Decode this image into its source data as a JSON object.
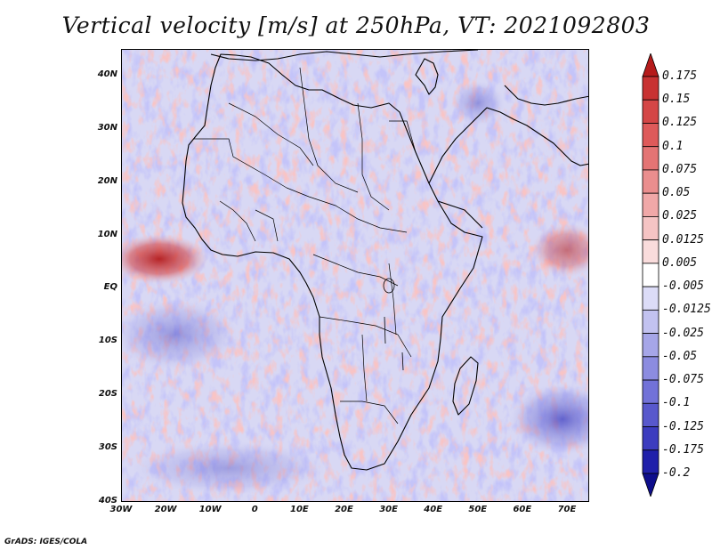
{
  "title": "Vertical velocity [m/s] at 250hPa, VT: 2021092803",
  "footer": "GrADS: IGES/COLA",
  "map": {
    "lon_range": [
      -30,
      75
    ],
    "lat_range": [
      -40,
      45
    ],
    "y_ticks": [
      {
        "label": "40N",
        "lat": 40
      },
      {
        "label": "30N",
        "lat": 30
      },
      {
        "label": "20N",
        "lat": 20
      },
      {
        "label": "10N",
        "lat": 10
      },
      {
        "label": "EQ",
        "lat": 0
      },
      {
        "label": "10S",
        "lat": -10
      },
      {
        "label": "20S",
        "lat": -20
      },
      {
        "label": "30S",
        "lat": -30
      },
      {
        "label": "40S",
        "lat": -40
      }
    ],
    "x_ticks": [
      {
        "label": "30W",
        "lon": -30
      },
      {
        "label": "20W",
        "lon": -20
      },
      {
        "label": "10W",
        "lon": -10
      },
      {
        "label": "0",
        "lon": 0
      },
      {
        "label": "10E",
        "lon": 10
      },
      {
        "label": "20E",
        "lon": 20
      },
      {
        "label": "30E",
        "lon": 30
      },
      {
        "label": "40E",
        "lon": 40
      },
      {
        "label": "50E",
        "lon": 50
      },
      {
        "label": "60E",
        "lon": 60
      },
      {
        "label": "70E",
        "lon": 70
      }
    ]
  },
  "colorbar": {
    "levels": [
      "0.175",
      "0.15",
      "0.125",
      "0.1",
      "0.075",
      "0.05",
      "0.025",
      "0.0125",
      "0.005",
      "-0.005",
      "-0.0125",
      "-0.025",
      "-0.05",
      "-0.075",
      "-0.1",
      "-0.125",
      "-0.175",
      "-0.2"
    ],
    "colors": [
      "#b51b1b",
      "#c83232",
      "#d44646",
      "#de5a5a",
      "#e47474",
      "#ea8e8e",
      "#f0a8a8",
      "#f5c4c4",
      "#f9dcdc",
      "#ffffff",
      "#dcdcf7",
      "#c2c2f0",
      "#a6a6e8",
      "#8c8ce0",
      "#7272d8",
      "#5858cc",
      "#3c3cbf",
      "#2020aa",
      "#0e0e8c"
    ]
  }
}
